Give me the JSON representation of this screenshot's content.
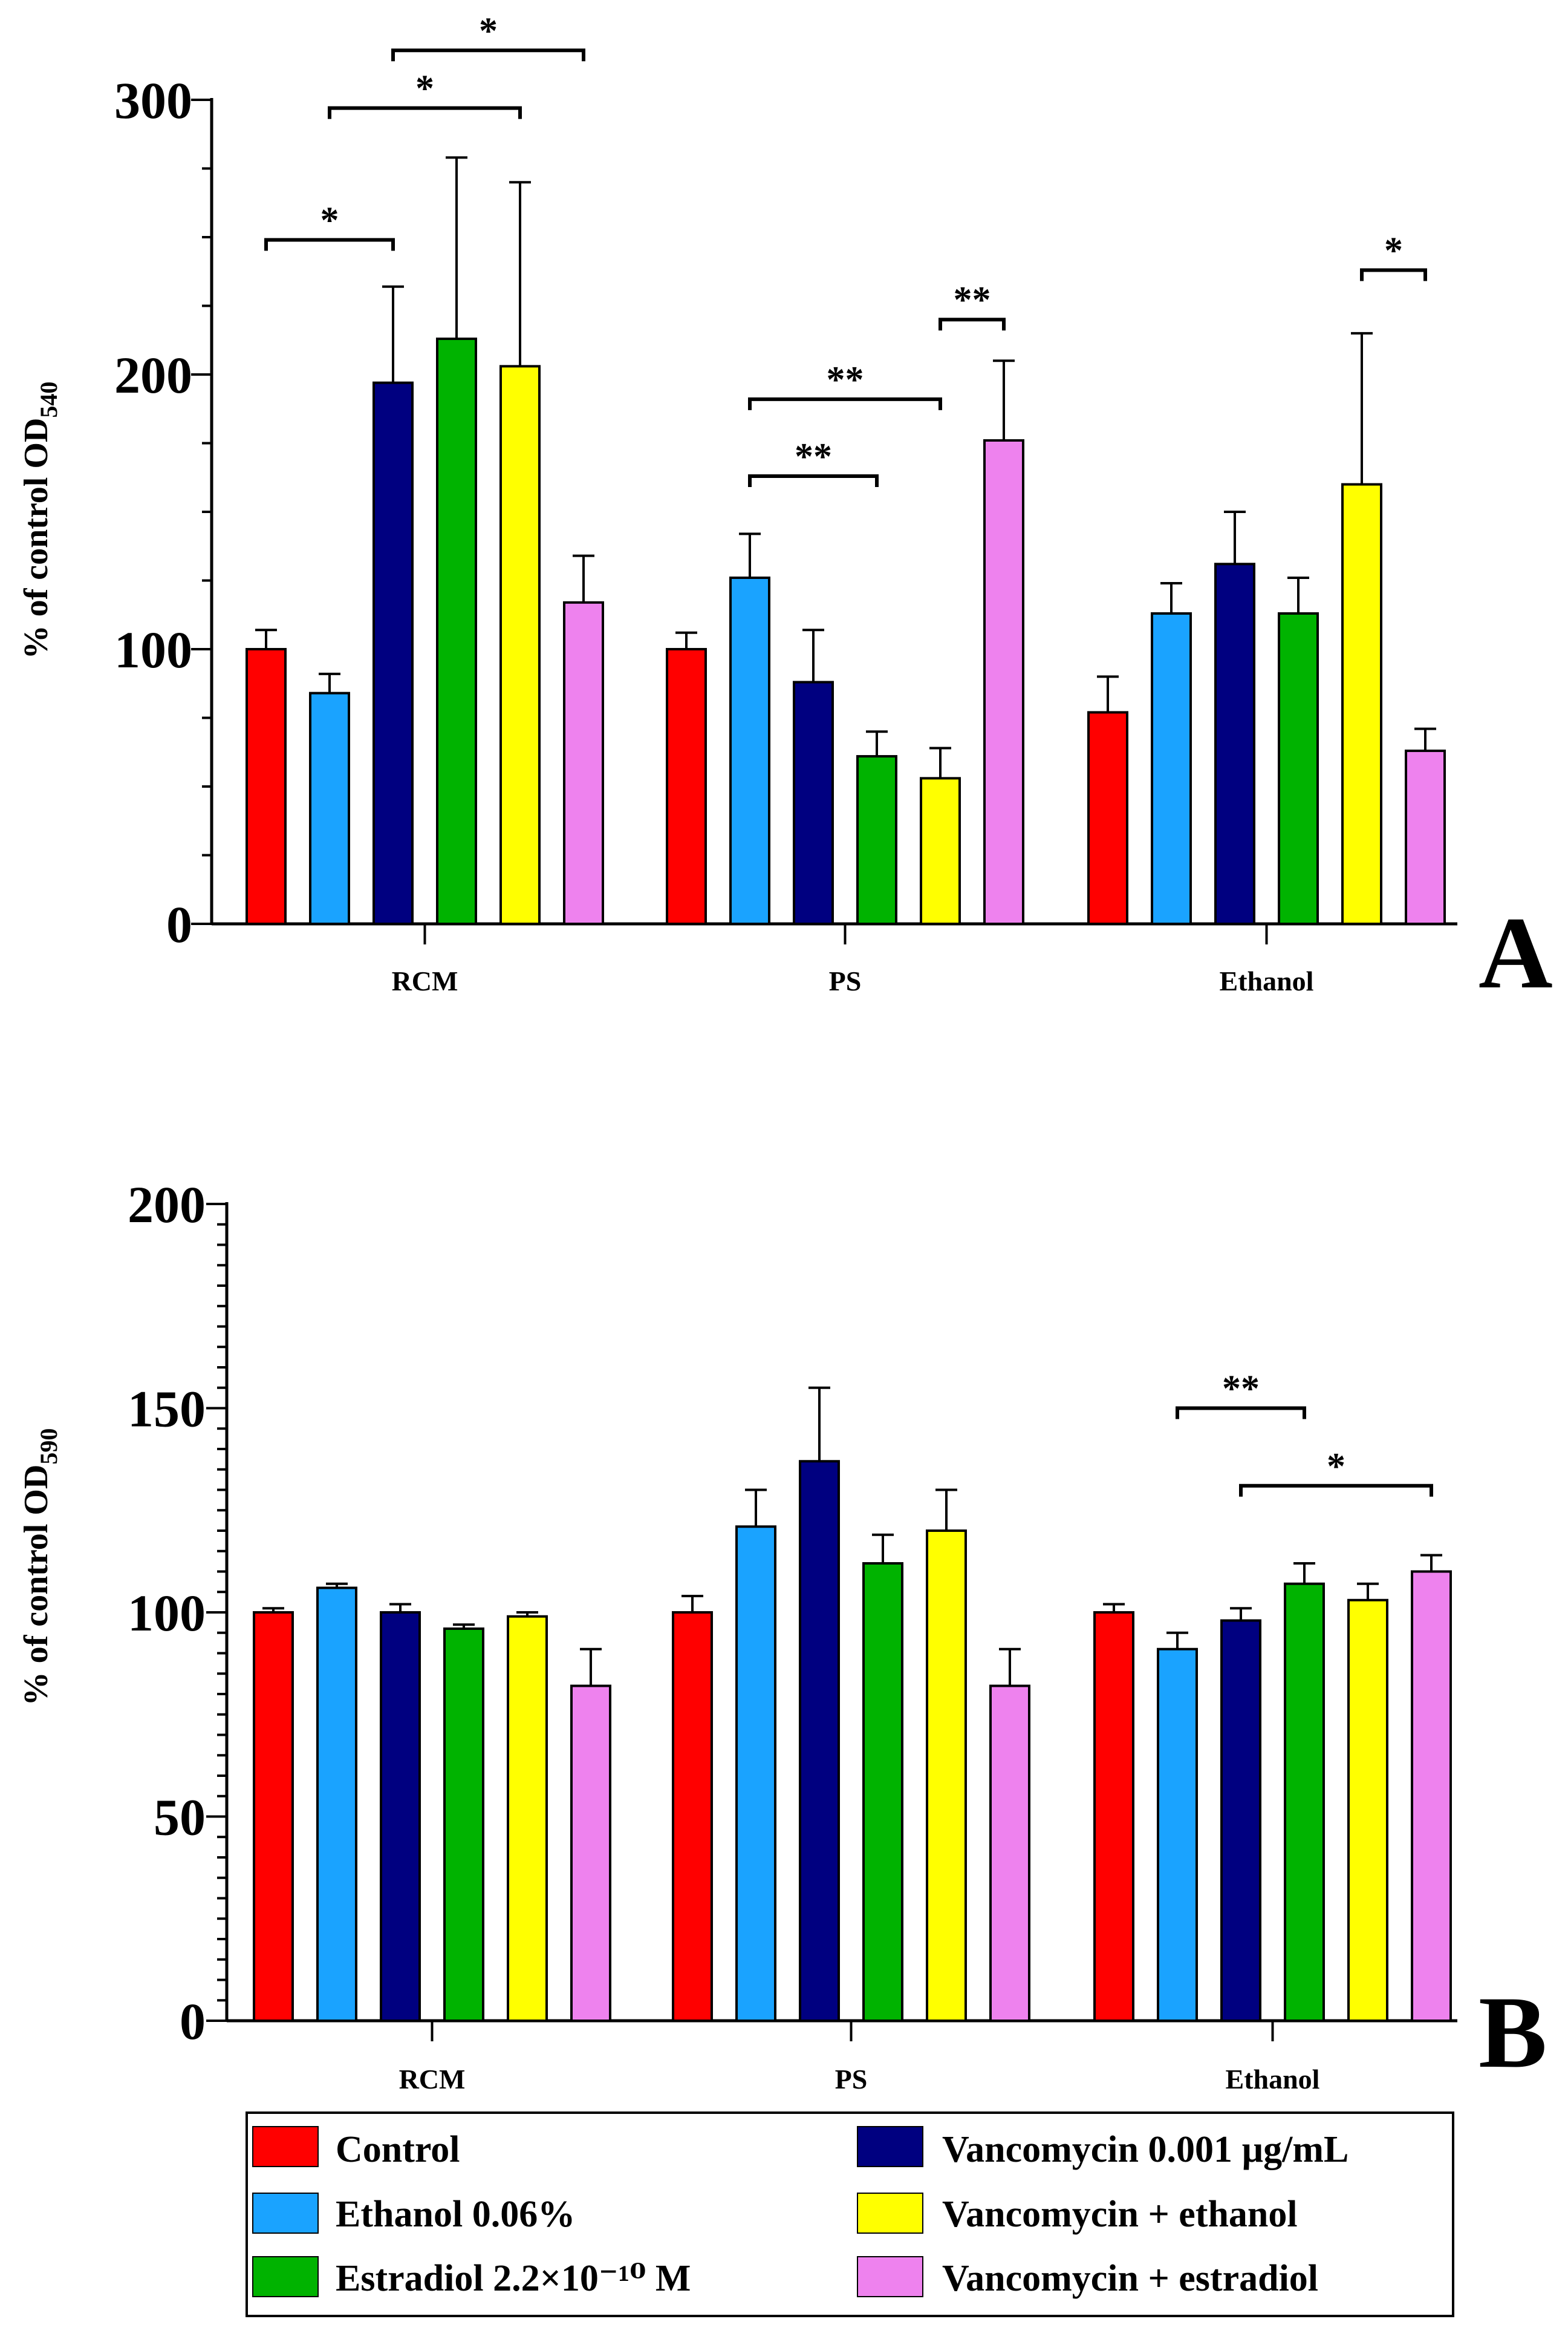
{
  "legend": {
    "items": [
      {
        "label": "Control",
        "color": "#ff0000"
      },
      {
        "label": "Ethanol 0.06%",
        "color": "#1aa3ff"
      },
      {
        "label": "Estradiol 2.2×10⁻¹⁰ M",
        "color": "#00b300"
      },
      {
        "label": "Vancomycin 0.001 µg/mL",
        "color": "#000080"
      },
      {
        "label": "Vancomycin + ethanol",
        "color": "#ffff00"
      },
      {
        "label": "Vancomycin + estradiol",
        "color": "#ee82ee"
      }
    ]
  },
  "chart_data": [
    {
      "type": "bar",
      "panel": "A",
      "ylabel": "% of control OD",
      "ylabel_subscript": "540",
      "ylim": [
        0,
        300
      ],
      "yticks": [
        0,
        100,
        200,
        300
      ],
      "categories": [
        "RCM",
        "PS",
        "Ethanol"
      ],
      "series": [
        {
          "name": "Control",
          "values": [
            100,
            100,
            77
          ],
          "errors": [
            7,
            6,
            13
          ]
        },
        {
          "name": "Ethanol 0.06%",
          "values": [
            84,
            126,
            113
          ],
          "errors": [
            7,
            16,
            11
          ]
        },
        {
          "name": "Vancomycin 0.001 µg/mL",
          "values": [
            197,
            88,
            131
          ],
          "errors": [
            35,
            19,
            19
          ]
        },
        {
          "name": "Estradiol 2.2×10⁻¹⁰ M",
          "values": [
            213,
            61,
            113
          ],
          "errors": [
            66,
            9,
            13
          ]
        },
        {
          "name": "Vancomycin + ethanol",
          "values": [
            203,
            53,
            160
          ],
          "errors": [
            67,
            11,
            55
          ]
        },
        {
          "name": "Vancomycin + estradiol",
          "values": [
            117,
            176,
            63
          ],
          "errors": [
            17,
            29,
            8
          ]
        }
      ],
      "significance": [
        {
          "label": "*",
          "group": 0,
          "from": 0,
          "to": 2,
          "y": 249
        },
        {
          "label": "*",
          "group": 0,
          "from": 1,
          "to": 4,
          "y": 297
        },
        {
          "label": "*",
          "group": 0,
          "from": 2,
          "to": 5,
          "y": 318
        },
        {
          "label": "**",
          "group": 1,
          "from": 1,
          "to": 3,
          "y": 163
        },
        {
          "label": "**",
          "group": 1,
          "from": 1,
          "to": 4,
          "y": 191
        },
        {
          "label": "**",
          "group": 1,
          "from": 4,
          "to": 5,
          "y": 220
        },
        {
          "label": "*",
          "group": 2,
          "from": 4,
          "to": 5,
          "y": 238
        }
      ]
    },
    {
      "type": "bar",
      "panel": "B",
      "ylabel": "% of control OD",
      "ylabel_subscript": "590",
      "ylim": [
        0,
        200
      ],
      "yticks": [
        0,
        50,
        100,
        150,
        200
      ],
      "categories": [
        "RCM",
        "PS",
        "Ethanol"
      ],
      "series": [
        {
          "name": "Control",
          "values": [
            100,
            100,
            100
          ],
          "errors": [
            1,
            4,
            2
          ]
        },
        {
          "name": "Ethanol 0.06%",
          "values": [
            106,
            121,
            91
          ],
          "errors": [
            1,
            9,
            4
          ]
        },
        {
          "name": "Vancomycin 0.001 µg/mL",
          "values": [
            100,
            137,
            98
          ],
          "errors": [
            2,
            18,
            3
          ]
        },
        {
          "name": "Estradiol 2.2×10⁻¹⁰ M",
          "values": [
            96,
            112,
            107
          ],
          "errors": [
            1,
            7,
            5
          ]
        },
        {
          "name": "Vancomycin + ethanol",
          "values": [
            99,
            120,
            103
          ],
          "errors": [
            1,
            10,
            4
          ]
        },
        {
          "name": "Vancomycin + estradiol",
          "values": [
            82,
            82,
            110
          ],
          "errors": [
            9,
            9,
            4
          ]
        }
      ],
      "significance": [
        {
          "label": "**",
          "group": 2,
          "from": 1,
          "to": 3,
          "y": 150
        },
        {
          "label": "*",
          "group": 2,
          "from": 2,
          "to": 5,
          "y": 131
        }
      ]
    }
  ]
}
